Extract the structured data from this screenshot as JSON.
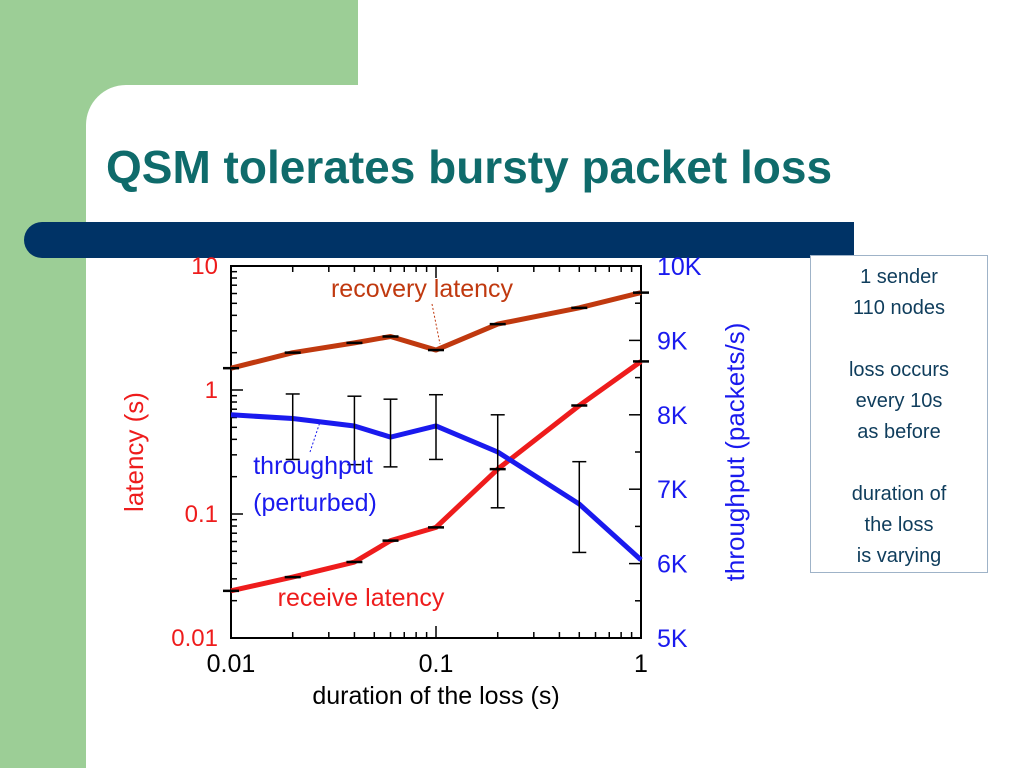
{
  "slide": {
    "title": "QSM tolerates bursty packet loss",
    "colors": {
      "panel": "#9cce96",
      "bar": "#003366",
      "title": "#0f6b6b"
    }
  },
  "chart_data": {
    "type": "line",
    "x_scale": "log",
    "xlim": [
      0.01,
      1
    ],
    "xlabel": "duration of the loss (s)",
    "x_ticks": [
      "0.01",
      "0.1",
      "1"
    ],
    "y_left": {
      "label": "latency (s)",
      "scale": "log",
      "lim": [
        0.01,
        10
      ],
      "ticks": [
        "10",
        "1",
        "0.1",
        "0.01"
      ],
      "color": "#ee1c1c"
    },
    "y_right": {
      "label": "throughput (packets/s)",
      "scale": "linear",
      "lim": [
        5000,
        10000
      ],
      "ticks": [
        "10K",
        "9K",
        "8K",
        "7K",
        "6K",
        "5K"
      ],
      "color": "#1a1aee"
    },
    "series": [
      {
        "name": "recovery latency",
        "axis": "left",
        "color": "#c0390f",
        "x": [
          0.01,
          0.02,
          0.04,
          0.06,
          0.1,
          0.2,
          0.5,
          1.0
        ],
        "y": [
          1.5,
          2.0,
          2.4,
          2.7,
          2.1,
          3.4,
          4.6,
          6.1
        ]
      },
      {
        "name": "receive latency",
        "axis": "left",
        "color": "#ee1c1c",
        "x": [
          0.01,
          0.02,
          0.04,
          0.06,
          0.1,
          0.2,
          0.5,
          1.0
        ],
        "y": [
          0.024,
          0.031,
          0.041,
          0.061,
          0.078,
          0.23,
          0.75,
          1.7
        ]
      },
      {
        "name": "throughput\n(perturbed)",
        "axis": "right",
        "color": "#1a1aee",
        "x": [
          0.01,
          0.02,
          0.04,
          0.06,
          0.1,
          0.2,
          0.5,
          1.0
        ],
        "y": [
          8000,
          7950,
          7850,
          7700,
          7850,
          7500,
          6800,
          6050
        ],
        "error_low": [
          null,
          7400,
          7330,
          7300,
          7400,
          6750,
          6150,
          null
        ],
        "error_high": [
          null,
          8280,
          8250,
          8210,
          8270,
          8000,
          7370,
          null
        ]
      }
    ],
    "annotations": {
      "recovery": "recovery latency",
      "throughput_line1": "throughput",
      "throughput_line2": "(perturbed)",
      "receive": "receive latency"
    }
  },
  "notes": {
    "lines": [
      "1 sender",
      "110 nodes",
      "",
      "loss occurs",
      "every 10s",
      "as before",
      "",
      "duration of",
      "the loss",
      "is varying"
    ]
  }
}
